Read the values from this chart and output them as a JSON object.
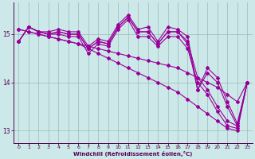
{
  "xlabel": "Windchill (Refroidissement éolien,°C)",
  "line_color": "#990099",
  "bg_color": "#cce8e8",
  "grid_color": "#99bbbb",
  "axis_color": "#550055",
  "lines": [
    [
      14.85,
      15.15,
      15.05,
      15.05,
      15.1,
      15.05,
      15.05,
      14.75,
      14.9,
      14.85,
      15.2,
      15.4,
      15.1,
      15.15,
      14.85,
      15.15,
      15.1,
      14.95,
      13.85,
      14.3,
      14.1,
      13.6,
      13.15,
      14.0
    ],
    [
      14.85,
      15.15,
      15.05,
      15.0,
      15.05,
      15.0,
      15.0,
      14.7,
      14.85,
      14.8,
      15.15,
      15.35,
      15.05,
      15.05,
      14.8,
      15.05,
      15.05,
      14.85,
      14.1,
      13.85,
      13.5,
      13.2,
      13.1,
      14.0
    ],
    [
      14.85,
      15.15,
      15.05,
      15.0,
      15.0,
      14.95,
      14.95,
      14.6,
      14.8,
      14.75,
      15.1,
      15.3,
      14.95,
      14.95,
      14.75,
      14.95,
      14.95,
      14.7,
      14.0,
      13.75,
      13.4,
      13.1,
      13.05,
      14.0
    ],
    [
      14.85,
      15.15,
      15.05,
      15.0,
      15.05,
      15.0,
      15.0,
      14.7,
      14.85,
      14.8,
      15.15,
      15.35,
      15.05,
      15.05,
      14.8,
      15.05,
      15.05,
      14.8,
      13.85,
      14.2,
      14.0,
      13.5,
      13.1,
      14.0
    ]
  ],
  "straight_lines": [
    [
      15.1,
      15.05,
      15.0,
      14.95,
      14.9,
      14.85,
      14.8,
      14.75,
      14.7,
      14.65,
      14.6,
      14.55,
      14.5,
      14.45,
      14.4,
      14.35,
      14.3,
      14.2,
      14.1,
      14.0,
      13.9,
      13.75,
      13.6,
      14.0
    ],
    [
      15.1,
      15.05,
      15.0,
      14.95,
      14.9,
      14.85,
      14.8,
      14.7,
      14.6,
      14.5,
      14.4,
      14.3,
      14.2,
      14.1,
      14.0,
      13.9,
      13.8,
      13.65,
      13.5,
      13.35,
      13.2,
      13.05,
      13.0,
      14.0
    ]
  ],
  "ylim": [
    12.75,
    15.65
  ],
  "yticks": [
    13,
    14,
    15
  ],
  "xlim": [
    -0.5,
    23.5
  ],
  "xticks": [
    0,
    1,
    2,
    3,
    4,
    5,
    6,
    7,
    8,
    9,
    10,
    11,
    12,
    13,
    14,
    15,
    16,
    17,
    18,
    19,
    20,
    21,
    22,
    23
  ],
  "marker": "D",
  "markersize": 2.0,
  "linewidth": 0.8
}
